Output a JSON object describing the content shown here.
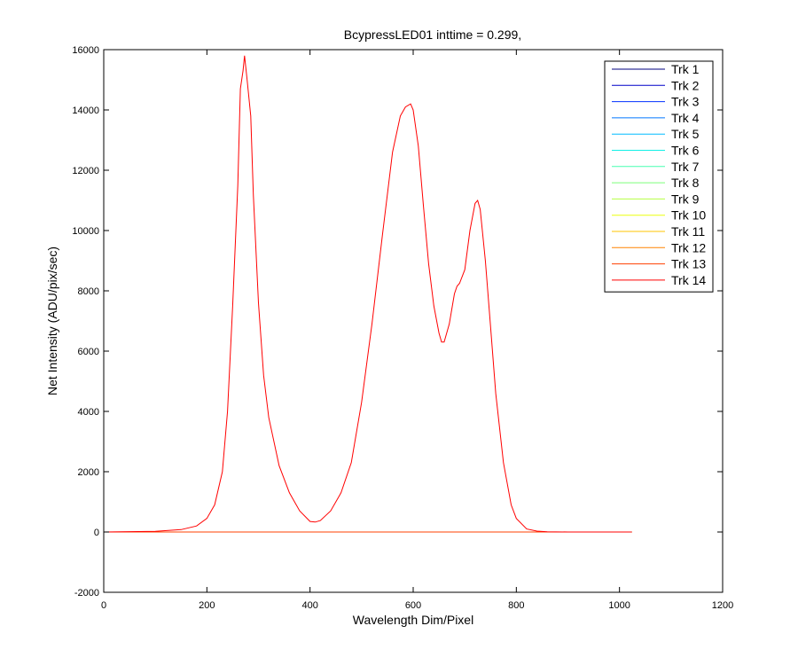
{
  "chart_data": {
    "type": "line",
    "title": "BcypressLED01 inttime = 0.299,",
    "xlabel": "Wavelength Dim/Pixel",
    "ylabel": "Net Intensity (ADU/pix/sec)",
    "xlim": [
      0,
      1200
    ],
    "ylim": [
      -2000,
      16000
    ],
    "xticks": [
      0,
      200,
      400,
      600,
      800,
      1000,
      1200
    ],
    "yticks": [
      -2000,
      0,
      2000,
      4000,
      6000,
      8000,
      10000,
      12000,
      14000,
      16000
    ],
    "legend_position": "top-right",
    "grid": false,
    "series": [
      {
        "name": "Trk 1",
        "color": "#00007f",
        "x": [
          1,
          1024
        ],
        "y": [
          0,
          0
        ]
      },
      {
        "name": "Trk 2",
        "color": "#0000c8",
        "x": [
          1,
          1024
        ],
        "y": [
          0,
          0
        ]
      },
      {
        "name": "Trk 3",
        "color": "#0030ff",
        "x": [
          1,
          1024
        ],
        "y": [
          0,
          0
        ]
      },
      {
        "name": "Trk 4",
        "color": "#0076ff",
        "x": [
          1,
          1024
        ],
        "y": [
          0,
          0
        ]
      },
      {
        "name": "Trk 5",
        "color": "#00bcff",
        "x": [
          1,
          1024
        ],
        "y": [
          0,
          0
        ]
      },
      {
        "name": "Trk 6",
        "color": "#10f0e6",
        "x": [
          1,
          1024
        ],
        "y": [
          0,
          0
        ]
      },
      {
        "name": "Trk 7",
        "color": "#46ffb0",
        "x": [
          1,
          1024
        ],
        "y": [
          0,
          0
        ]
      },
      {
        "name": "Trk 8",
        "color": "#7cff7a",
        "x": [
          1,
          1024
        ],
        "y": [
          0,
          0
        ]
      },
      {
        "name": "Trk 9",
        "color": "#b4ff42",
        "x": [
          1,
          1024
        ],
        "y": [
          0,
          0
        ]
      },
      {
        "name": "Trk 10",
        "color": "#eaff0c",
        "x": [
          1,
          1024
        ],
        "y": [
          0,
          0
        ]
      },
      {
        "name": "Trk 11",
        "color": "#ffc400",
        "x": [
          1,
          1024
        ],
        "y": [
          0,
          0
        ]
      },
      {
        "name": "Trk 12",
        "color": "#ff8400",
        "x": [
          1,
          1024
        ],
        "y": [
          0,
          0
        ]
      },
      {
        "name": "Trk 13",
        "color": "#ff4000",
        "x": [
          1,
          1024
        ],
        "y": [
          0,
          0
        ]
      },
      {
        "name": "Trk 14",
        "color": "#ff0000",
        "x": [
          1,
          100,
          150,
          180,
          200,
          215,
          230,
          240,
          250,
          260,
          265,
          270,
          273,
          278,
          285,
          290,
          300,
          310,
          320,
          340,
          360,
          380,
          400,
          410,
          420,
          440,
          460,
          480,
          500,
          520,
          540,
          560,
          575,
          585,
          595,
          600,
          610,
          620,
          630,
          640,
          650,
          655,
          660,
          670,
          680,
          685,
          690,
          700,
          710,
          720,
          725,
          730,
          740,
          750,
          760,
          775,
          790,
          800,
          820,
          840,
          860,
          900,
          1000,
          1024
        ],
        "y": [
          0,
          20,
          80,
          200,
          450,
          900,
          2000,
          4000,
          7500,
          11500,
          14700,
          15300,
          15800,
          15000,
          13800,
          11200,
          7600,
          5200,
          3800,
          2200,
          1300,
          700,
          350,
          330,
          380,
          700,
          1300,
          2300,
          4300,
          6900,
          9800,
          12600,
          13800,
          14100,
          14200,
          14000,
          12800,
          10800,
          8900,
          7500,
          6600,
          6300,
          6300,
          6900,
          7900,
          8150,
          8250,
          8700,
          10000,
          10900,
          11000,
          10700,
          9000,
          6800,
          4600,
          2300,
          900,
          450,
          100,
          30,
          10,
          0,
          0,
          0
        ]
      }
    ]
  }
}
